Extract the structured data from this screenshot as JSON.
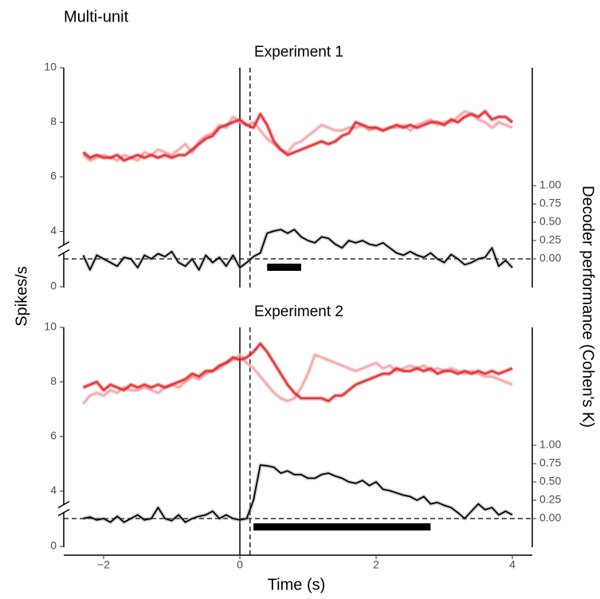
{
  "figure": {
    "title": "Multi-unit",
    "xlabel": "Time (s)",
    "ylabel": "Spikes/s",
    "y2label": "Decoder performance (Cohen's K)"
  },
  "chart_data": [
    {
      "type": "line",
      "title": "Experiment 1",
      "x": [
        -2.3,
        -2.2,
        -2.1,
        -2,
        -1.9,
        -1.8,
        -1.7,
        -1.6,
        -1.5,
        -1.4,
        -1.3,
        -1.2,
        -1.1,
        -1,
        -0.9,
        -0.8,
        -0.7,
        -0.6,
        -0.5,
        -0.4,
        -0.3,
        -0.2,
        -0.1,
        0,
        0.1,
        0.2,
        0.3,
        0.4,
        0.5,
        0.6,
        0.7,
        0.8,
        0.9,
        1,
        1.1,
        1.2,
        1.3,
        1.4,
        1.5,
        1.6,
        1.7,
        1.8,
        1.9,
        2,
        2.1,
        2.2,
        2.3,
        2.4,
        2.5,
        2.6,
        2.7,
        2.8,
        2.9,
        3,
        3.1,
        3.2,
        3.3,
        3.4,
        3.5,
        3.6,
        3.7,
        3.8,
        3.9,
        4
      ],
      "series": [
        {
          "color": "#f4a3a8",
          "values": [
            6.8,
            6.6,
            6.7,
            6.8,
            6.7,
            6.6,
            6.8,
            6.7,
            6.6,
            6.9,
            6.8,
            7.0,
            6.9,
            6.8,
            7.0,
            7.2,
            6.9,
            7.3,
            7.5,
            7.6,
            7.9,
            7.8,
            8.2,
            8.0,
            7.9,
            8.0,
            7.7,
            7.4,
            7.2,
            7.0,
            6.9,
            7.2,
            7.3,
            7.5,
            7.7,
            7.9,
            7.8,
            7.7,
            7.7,
            7.8,
            7.8,
            7.9,
            7.7,
            7.8,
            7.7,
            7.8,
            7.8,
            7.9,
            7.7,
            7.9,
            8.0,
            8.1,
            7.9,
            8.0,
            8.0,
            8.2,
            8.4,
            8.3,
            8.1,
            8.0,
            7.8,
            8.0,
            7.9,
            7.8
          ]
        },
        {
          "color": "#e0262b",
          "values": [
            6.9,
            6.7,
            6.8,
            6.7,
            6.7,
            6.8,
            6.6,
            6.7,
            6.8,
            6.7,
            6.8,
            6.7,
            6.8,
            6.7,
            6.8,
            6.8,
            7.0,
            7.2,
            7.4,
            7.5,
            7.8,
            7.9,
            8.0,
            8.1,
            7.9,
            7.8,
            8.3,
            7.9,
            7.3,
            7.0,
            6.8,
            6.9,
            7.0,
            7.1,
            7.2,
            7.3,
            7.2,
            7.3,
            7.5,
            7.6,
            8.0,
            7.9,
            7.8,
            7.8,
            7.7,
            7.8,
            7.9,
            7.8,
            7.9,
            7.8,
            7.9,
            8.0,
            8.0,
            7.9,
            8.1,
            8.0,
            8.2,
            8.3,
            8.2,
            8.4,
            8.1,
            8.2,
            8.2,
            8.0
          ]
        },
        {
          "color": "#000000",
          "axis": "y2",
          "values": [
            0.05,
            -0.15,
            0.05,
            0.0,
            -0.05,
            -0.1,
            0.02,
            0.0,
            -0.12,
            0.05,
            0.0,
            0.07,
            0.03,
            0.1,
            -0.05,
            -0.1,
            0.0,
            -0.15,
            0.05,
            -0.05,
            0.02,
            -0.1,
            0.05,
            -0.12,
            -0.05,
            0.03,
            0.08,
            0.35,
            0.38,
            0.4,
            0.35,
            0.4,
            0.3,
            0.25,
            0.22,
            0.3,
            0.28,
            0.2,
            0.15,
            0.25,
            0.22,
            0.25,
            0.2,
            0.18,
            0.22,
            0.15,
            0.08,
            0.05,
            0.1,
            0.05,
            0.02,
            0.08,
            0.0,
            -0.05,
            0.06,
            0.0,
            -0.08,
            -0.05,
            0.0,
            0.02,
            0.15,
            -0.1,
            -0.02,
            -0.12
          ]
        }
      ],
      "significance_interval": [
        0.4,
        0.9
      ],
      "dashed_x": 0.15,
      "xlim": [
        -2.585,
        4.292
      ],
      "ylim": [
        2,
        10
      ],
      "yticks": [
        4,
        6,
        8,
        10
      ],
      "ybreak_tick": 0,
      "y2lim": [
        -0.37,
        2.61
      ],
      "y2ticks": [
        {
          "value": 0,
          "label": "0.00"
        },
        {
          "value": 0.25,
          "label": "0.25"
        },
        {
          "value": 0.5,
          "label": "0.50"
        },
        {
          "value": 0.75,
          "label": "0.75"
        },
        {
          "value": 1,
          "label": "1.00"
        }
      ]
    },
    {
      "type": "line",
      "title": "Experiment 2",
      "x": [
        -2.3,
        -2.2,
        -2.1,
        -2,
        -1.9,
        -1.8,
        -1.7,
        -1.6,
        -1.5,
        -1.4,
        -1.3,
        -1.2,
        -1.1,
        -1,
        -0.9,
        -0.8,
        -0.7,
        -0.6,
        -0.5,
        -0.4,
        -0.3,
        -0.2,
        -0.1,
        0,
        0.1,
        0.2,
        0.3,
        0.4,
        0.5,
        0.6,
        0.7,
        0.8,
        0.9,
        1,
        1.1,
        1.2,
        1.3,
        1.4,
        1.5,
        1.6,
        1.7,
        1.8,
        1.9,
        2,
        2.1,
        2.2,
        2.3,
        2.4,
        2.5,
        2.6,
        2.7,
        2.8,
        2.9,
        3,
        3.1,
        3.2,
        3.3,
        3.4,
        3.5,
        3.6,
        3.7,
        3.8,
        3.9,
        4
      ],
      "series": [
        {
          "color": "#f4a3a8",
          "values": [
            7.2,
            7.5,
            7.6,
            7.5,
            7.7,
            7.6,
            7.8,
            7.7,
            7.7,
            7.8,
            7.7,
            7.6,
            7.8,
            7.9,
            7.8,
            8.0,
            8.2,
            8.1,
            8.3,
            8.4,
            8.5,
            8.7,
            8.8,
            9.0,
            8.7,
            8.5,
            8.2,
            7.9,
            7.6,
            7.4,
            7.3,
            7.4,
            7.8,
            8.3,
            9.0,
            8.9,
            8.8,
            8.7,
            8.6,
            8.5,
            8.4,
            8.5,
            8.6,
            8.7,
            8.5,
            8.6,
            8.4,
            8.5,
            8.6,
            8.5,
            8.6,
            8.4,
            8.5,
            8.4,
            8.5,
            8.4,
            8.3,
            8.4,
            8.3,
            8.2,
            8.2,
            8.1,
            8.0,
            7.9
          ]
        },
        {
          "color": "#e0262b",
          "values": [
            7.8,
            7.9,
            8.0,
            7.7,
            7.9,
            7.8,
            7.7,
            7.9,
            7.8,
            7.9,
            7.8,
            7.9,
            7.8,
            7.9,
            8.0,
            8.1,
            8.3,
            8.2,
            8.4,
            8.4,
            8.6,
            8.7,
            8.9,
            8.8,
            8.9,
            9.1,
            9.4,
            9.1,
            8.7,
            8.3,
            7.9,
            7.6,
            7.4,
            7.4,
            7.4,
            7.4,
            7.3,
            7.5,
            7.5,
            7.7,
            7.9,
            8.0,
            8.1,
            8.2,
            8.3,
            8.3,
            8.5,
            8.4,
            8.4,
            8.5,
            8.4,
            8.5,
            8.3,
            8.4,
            8.4,
            8.3,
            8.4,
            8.3,
            8.4,
            8.3,
            8.4,
            8.3,
            8.4,
            8.5
          ]
        },
        {
          "color": "#000000",
          "axis": "y2",
          "values": [
            0.0,
            0.02,
            -0.02,
            0.0,
            -0.05,
            0.03,
            -0.05,
            0.0,
            0.05,
            -0.02,
            0.0,
            0.15,
            0.0,
            -0.03,
            0.05,
            -0.05,
            0.0,
            0.03,
            0.05,
            0.1,
            0.0,
            0.05,
            0.0,
            -0.02,
            0.0,
            0.25,
            0.73,
            0.72,
            0.7,
            0.62,
            0.65,
            0.6,
            0.6,
            0.55,
            0.55,
            0.6,
            0.62,
            0.58,
            0.55,
            0.5,
            0.48,
            0.52,
            0.45,
            0.5,
            0.4,
            0.38,
            0.35,
            0.32,
            0.3,
            0.25,
            0.3,
            0.2,
            0.22,
            0.18,
            0.15,
            0.08,
            0.0,
            0.1,
            0.2,
            0.12,
            0.15,
            0.05,
            0.1,
            0.05
          ]
        }
      ],
      "significance_interval": [
        0.2,
        2.8
      ],
      "dashed_x": 0.15,
      "xlim": [
        -2.585,
        4.292
      ],
      "xticks": [
        {
          "value": -2,
          "label": "−2"
        },
        0,
        2,
        4
      ],
      "ylim": [
        2,
        10
      ],
      "yticks": [
        4,
        6,
        8,
        10
      ],
      "ybreak_tick": 0,
      "y2lim": [
        -0.37,
        2.61
      ],
      "y2ticks": [
        {
          "value": 0,
          "label": "0.00"
        },
        {
          "value": 0.25,
          "label": "0.25"
        },
        {
          "value": 0.5,
          "label": "0.50"
        },
        {
          "value": 0.75,
          "label": "0.75"
        },
        {
          "value": 1,
          "label": "1.00"
        }
      ]
    }
  ]
}
